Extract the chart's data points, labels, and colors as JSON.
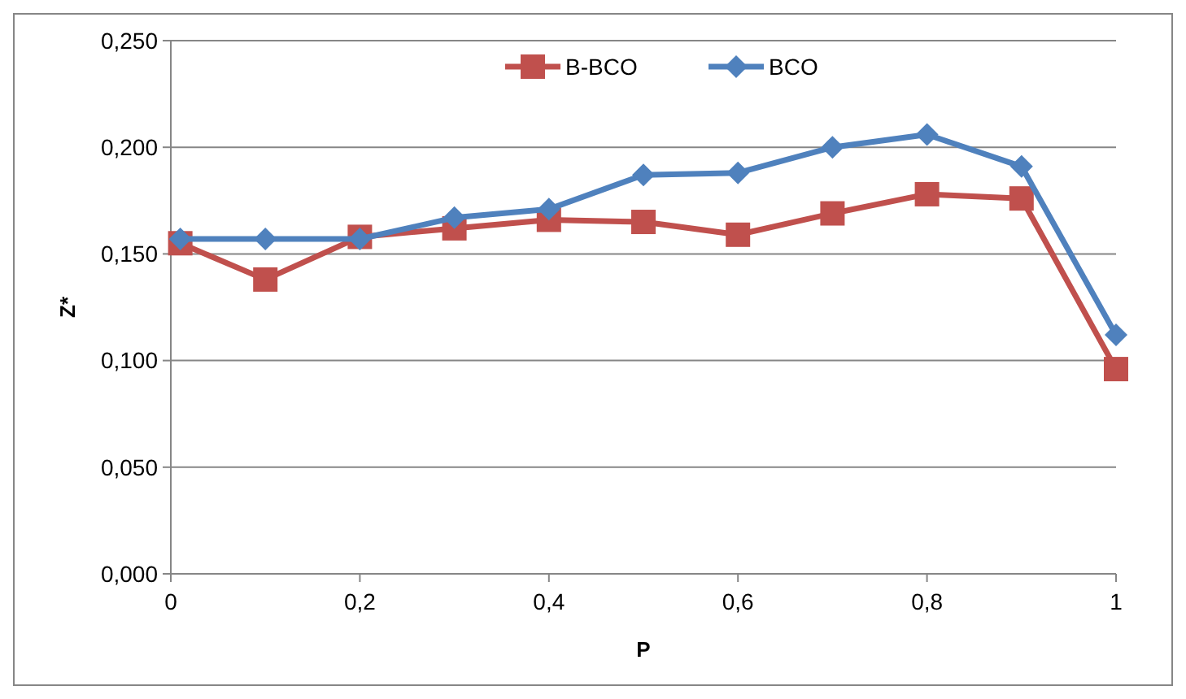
{
  "chart_data": {
    "type": "line",
    "xlabel": "P",
    "ylabel": "Z*",
    "x": [
      0.01,
      0.1,
      0.2,
      0.3,
      0.4,
      0.5,
      0.6,
      0.7,
      0.8,
      0.9,
      1
    ],
    "series": [
      {
        "name": "B-BCO",
        "color": "#c0504d",
        "marker": "square",
        "values": [
          0.155,
          0.138,
          0.158,
          0.162,
          0.166,
          0.165,
          0.159,
          0.169,
          0.178,
          0.176,
          0.096
        ]
      },
      {
        "name": "BCO",
        "color": "#4f81bd",
        "marker": "diamond",
        "values": [
          0.157,
          0.157,
          0.157,
          0.167,
          0.171,
          0.187,
          0.188,
          0.2,
          0.206,
          0.191,
          0.112
        ]
      }
    ],
    "xlim": [
      0,
      1
    ],
    "xticks": [
      0,
      {
        "value": 0.2,
        "label": "0,2"
      },
      {
        "value": 0.4,
        "label": "0,4"
      },
      {
        "value": 0.6,
        "label": "0,6"
      },
      {
        "value": 0.8,
        "label": "0,8"
      },
      1
    ],
    "ylim": [
      0,
      0.25
    ],
    "yticks": [
      {
        "value": 0,
        "label": "0,000"
      },
      {
        "value": 0.05,
        "label": "0,050"
      },
      {
        "value": 0.1,
        "label": "0,100"
      },
      {
        "value": 0.15,
        "label": "0,150"
      },
      {
        "value": 0.2,
        "label": "0,200"
      },
      {
        "value": 0.25,
        "label": "0,250"
      }
    ],
    "grid": "y",
    "legend": "top",
    "line_style": "solid"
  }
}
